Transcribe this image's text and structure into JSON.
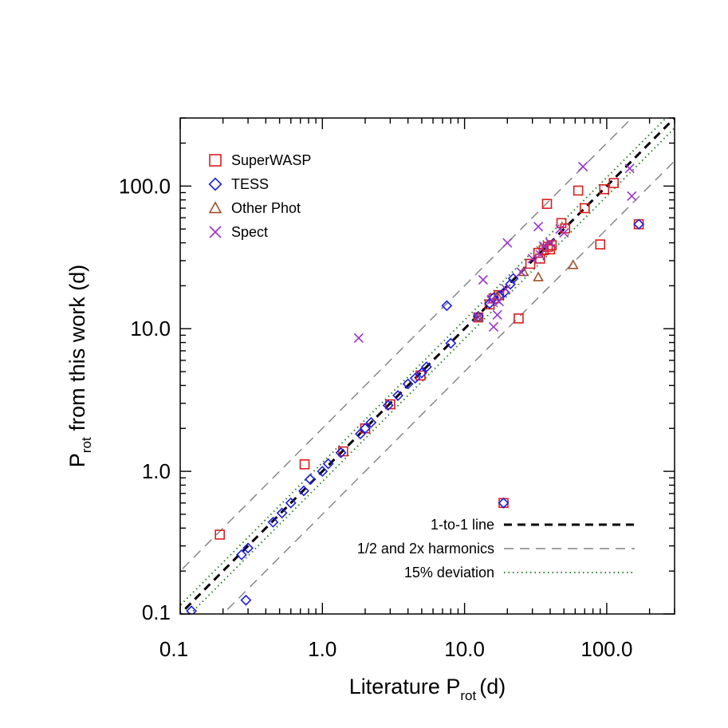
{
  "chart_data": {
    "type": "scatter",
    "xscale": "log",
    "yscale": "log",
    "xlim": [
      0.1,
      300
    ],
    "ylim": [
      0.1,
      300
    ],
    "xlabel": {
      "main": "Literature P",
      "sub": "rot",
      "unit": "(d)"
    },
    "ylabel": {
      "main": "P",
      "sub": "rot",
      "unit": "from this work (d)"
    },
    "xticks": [
      {
        "value": 0.1,
        "label": "0.1"
      },
      {
        "value": 1,
        "label": "1.0"
      },
      {
        "value": 10,
        "label": "10.0"
      },
      {
        "value": 100,
        "label": "100.0"
      }
    ],
    "yticks": [
      {
        "value": 0.1,
        "label": "0.1"
      },
      {
        "value": 1,
        "label": "1.0"
      },
      {
        "value": 10,
        "label": "10.0"
      },
      {
        "value": 100,
        "label": "100.0"
      }
    ],
    "legend_placement": "top-left",
    "lines_legend_placement": "bottom-right",
    "series": [
      {
        "name": "SuperWASP",
        "marker": "square",
        "color": "#dd1c1c",
        "points": [
          [
            0.19,
            0.36
          ],
          [
            0.75,
            1.12
          ],
          [
            1.4,
            1.38
          ],
          [
            2.0,
            2.0
          ],
          [
            3.0,
            2.95
          ],
          [
            4.9,
            4.7
          ],
          [
            12.5,
            12.0
          ],
          [
            15.0,
            14.8
          ],
          [
            16.0,
            16.3
          ],
          [
            17.5,
            17.2
          ],
          [
            18.8,
            0.6
          ],
          [
            24.0,
            11.8
          ],
          [
            29.0,
            28.5
          ],
          [
            33.0,
            34.0
          ],
          [
            34.0,
            31.0
          ],
          [
            36.0,
            35.5
          ],
          [
            38.0,
            75.0
          ],
          [
            38.5,
            37.5
          ],
          [
            40.0,
            36.0
          ],
          [
            41.0,
            38.5
          ],
          [
            48.0,
            55.0
          ],
          [
            51.0,
            50.5
          ],
          [
            63.0,
            93.0
          ],
          [
            70.0,
            70.0
          ],
          [
            90.0,
            39.0
          ],
          [
            96.0,
            95.0
          ],
          [
            112.0,
            105.0
          ],
          [
            168.0,
            54.0
          ]
        ]
      },
      {
        "name": "TESS",
        "marker": "diamond",
        "color": "#1d1ddc",
        "points": [
          [
            0.12,
            0.105
          ],
          [
            0.27,
            0.26
          ],
          [
            0.29,
            0.125
          ],
          [
            0.3,
            0.29
          ],
          [
            0.45,
            0.44
          ],
          [
            0.52,
            0.51
          ],
          [
            0.6,
            0.6
          ],
          [
            0.74,
            0.73
          ],
          [
            0.82,
            0.88
          ],
          [
            1.0,
            1.0
          ],
          [
            1.1,
            1.13
          ],
          [
            1.35,
            1.35
          ],
          [
            1.85,
            1.83
          ],
          [
            2.0,
            2.0
          ],
          [
            2.2,
            2.2
          ],
          [
            2.9,
            2.9
          ],
          [
            3.4,
            3.4
          ],
          [
            4.0,
            4.1
          ],
          [
            4.5,
            4.5
          ],
          [
            5.0,
            4.9
          ],
          [
            5.4,
            5.4
          ],
          [
            7.5,
            14.5
          ],
          [
            8.0,
            7.9
          ],
          [
            12.5,
            12.2
          ],
          [
            15.0,
            15.0
          ],
          [
            16.0,
            16.5
          ],
          [
            17.5,
            17.0
          ],
          [
            18.8,
            0.6
          ],
          [
            19.0,
            18.0
          ],
          [
            21.0,
            20.5
          ],
          [
            22.0,
            22.5
          ],
          [
            168.0,
            54.0
          ]
        ]
      },
      {
        "name": "Other Phot",
        "marker": "triangle",
        "color": "#a0522d",
        "points": [
          [
            12.5,
            12.0
          ],
          [
            17.0,
            17.0
          ],
          [
            26.0,
            25.0
          ],
          [
            33.0,
            23.0
          ],
          [
            58.0,
            28.0
          ]
        ]
      },
      {
        "name": "Spect",
        "marker": "x",
        "color": "#9932cc",
        "points": [
          [
            1.8,
            8.6
          ],
          [
            12.5,
            12.0
          ],
          [
            13.5,
            22.0
          ],
          [
            15.5,
            16.0
          ],
          [
            16.0,
            10.3
          ],
          [
            17.0,
            12.5
          ],
          [
            17.5,
            15.5
          ],
          [
            19.5,
            19.0
          ],
          [
            20.0,
            40.0
          ],
          [
            25.0,
            25.0
          ],
          [
            30.0,
            31.0
          ],
          [
            33.0,
            52.0
          ],
          [
            34.0,
            33.0
          ],
          [
            36.0,
            38.0
          ],
          [
            40.0,
            40.0
          ],
          [
            47.0,
            50.0
          ],
          [
            50.0,
            47.0
          ],
          [
            68.0,
            137.0
          ],
          [
            145.0,
            133.0
          ],
          [
            150.0,
            85.0
          ]
        ]
      }
    ],
    "reference_lines": [
      {
        "name": "1-to-1 line",
        "style": "dashed-thick",
        "color": "#000000",
        "factor": 1.0
      },
      {
        "name": "1/2 and 2x harmonics",
        "style": "dashed-thin",
        "color": "#808080",
        "factors": [
          0.5,
          2.0
        ]
      },
      {
        "name": "15% deviation",
        "style": "dotted",
        "color": "#2e7d32",
        "factors": [
          0.85,
          1.15
        ]
      }
    ]
  }
}
